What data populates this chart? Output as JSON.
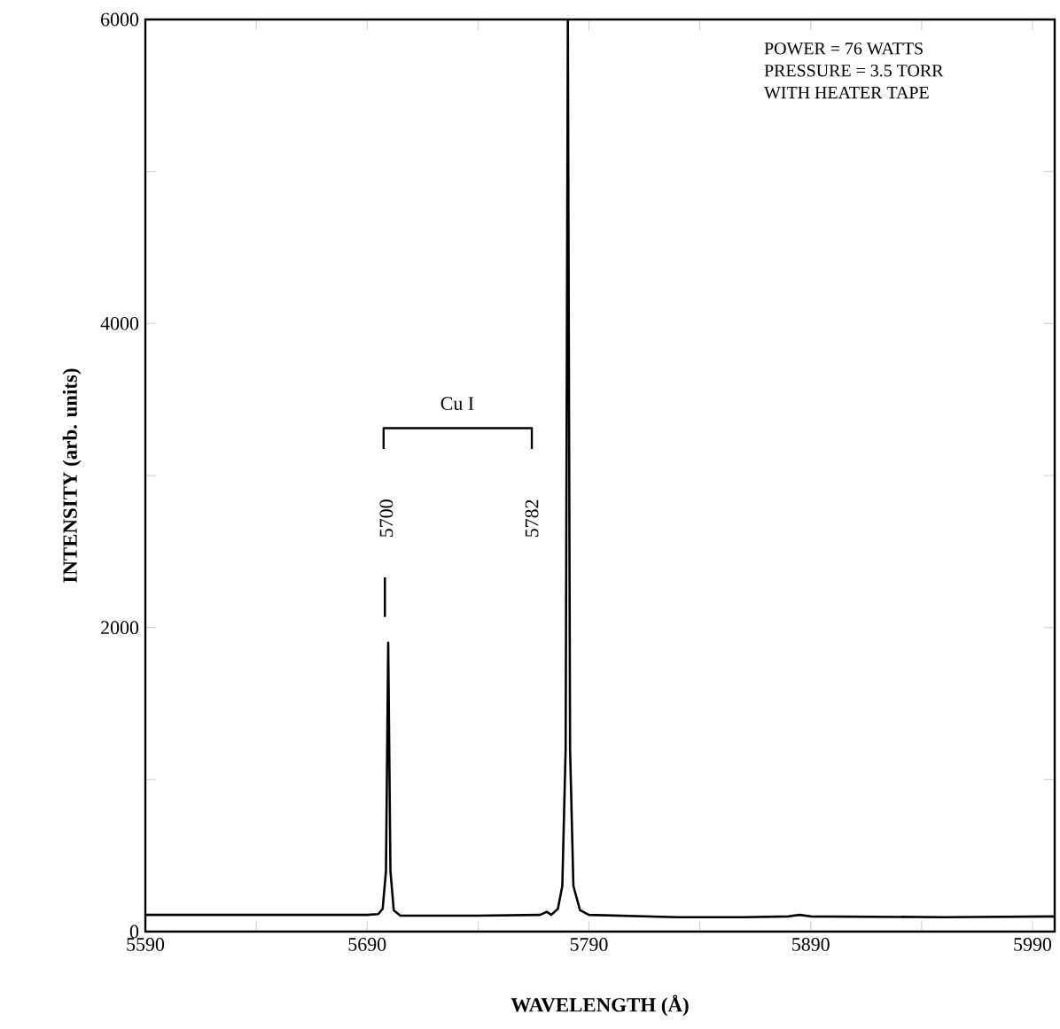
{
  "chart_data": {
    "type": "line",
    "xlabel": "WAVELENGTH  (Å)",
    "ylabel": "INTENSITY   (arb.   units)",
    "xlim": [
      5590,
      6000
    ],
    "ylim": [
      0,
      6000
    ],
    "xticks": [
      5590,
      {
        "value": 5640,
        "label": null
      },
      5690,
      {
        "value": 5740,
        "label": null
      },
      5790,
      {
        "value": 5840,
        "label": null
      },
      5890,
      {
        "value": 5940,
        "label": null
      },
      5990
    ],
    "yticks": [
      0,
      {
        "value": 1000,
        "label": null
      },
      2000,
      {
        "value": 3000,
        "label": null
      },
      4000,
      {
        "value": 5000,
        "label": null
      },
      6000
    ],
    "series": [
      {
        "color": "#000000",
        "x": [
          5590,
          5640,
          5690,
          5695,
          5697,
          5698.5,
          5699.5,
          5700.5,
          5702,
          5705,
          5740,
          5768,
          5771,
          5773,
          5776,
          5778,
          5779.5,
          5780.5,
          5781.5,
          5783,
          5786,
          5790,
          5830,
          5860,
          5880,
          5885,
          5890,
          5950,
          6000
        ],
        "values": [
          110,
          110,
          110,
          115,
          150,
          400,
          1900,
          400,
          140,
          105,
          105,
          110,
          130,
          110,
          150,
          300,
          1200,
          6000,
          1200,
          300,
          140,
          110,
          95,
          95,
          100,
          110,
          100,
          95,
          100
        ]
      },
      {
        "color": "#000000",
        "x": [
          5698,
          5698
        ],
        "values": [
          2070,
          2330
        ]
      }
    ],
    "annotations": [
      "Cu I",
      "5700",
      "5782",
      "POWER = 76 WATTS",
      "PRESSURE = 3.5 TORR",
      "WITH HEATER TAPE"
    ]
  }
}
